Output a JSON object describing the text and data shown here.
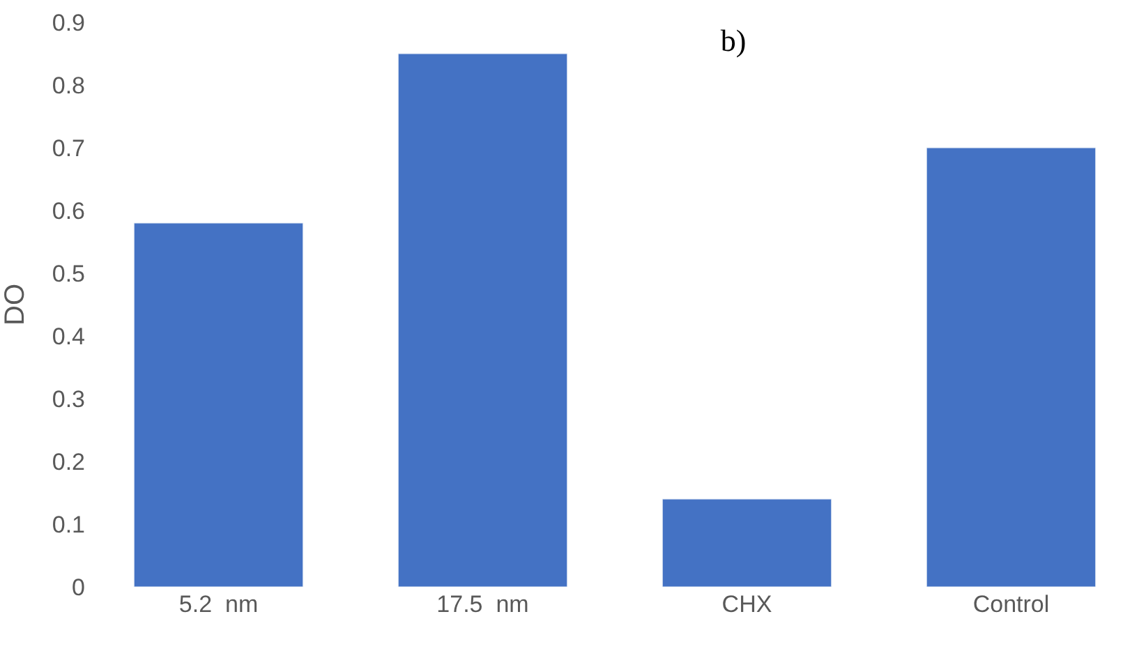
{
  "chart_data": {
    "type": "bar",
    "title": "b)",
    "ylabel": "DO",
    "categories": [
      "5.2  nm",
      "17.5  nm",
      "CHX",
      "Control"
    ],
    "values": [
      0.58,
      0.85,
      0.14,
      0.7
    ],
    "color": "#4472c4",
    "ylim": [
      0,
      0.9
    ],
    "yticks": [
      0,
      0.1,
      0.2,
      0.3,
      0.4,
      0.5,
      0.6,
      0.7,
      0.8,
      0.9
    ]
  }
}
